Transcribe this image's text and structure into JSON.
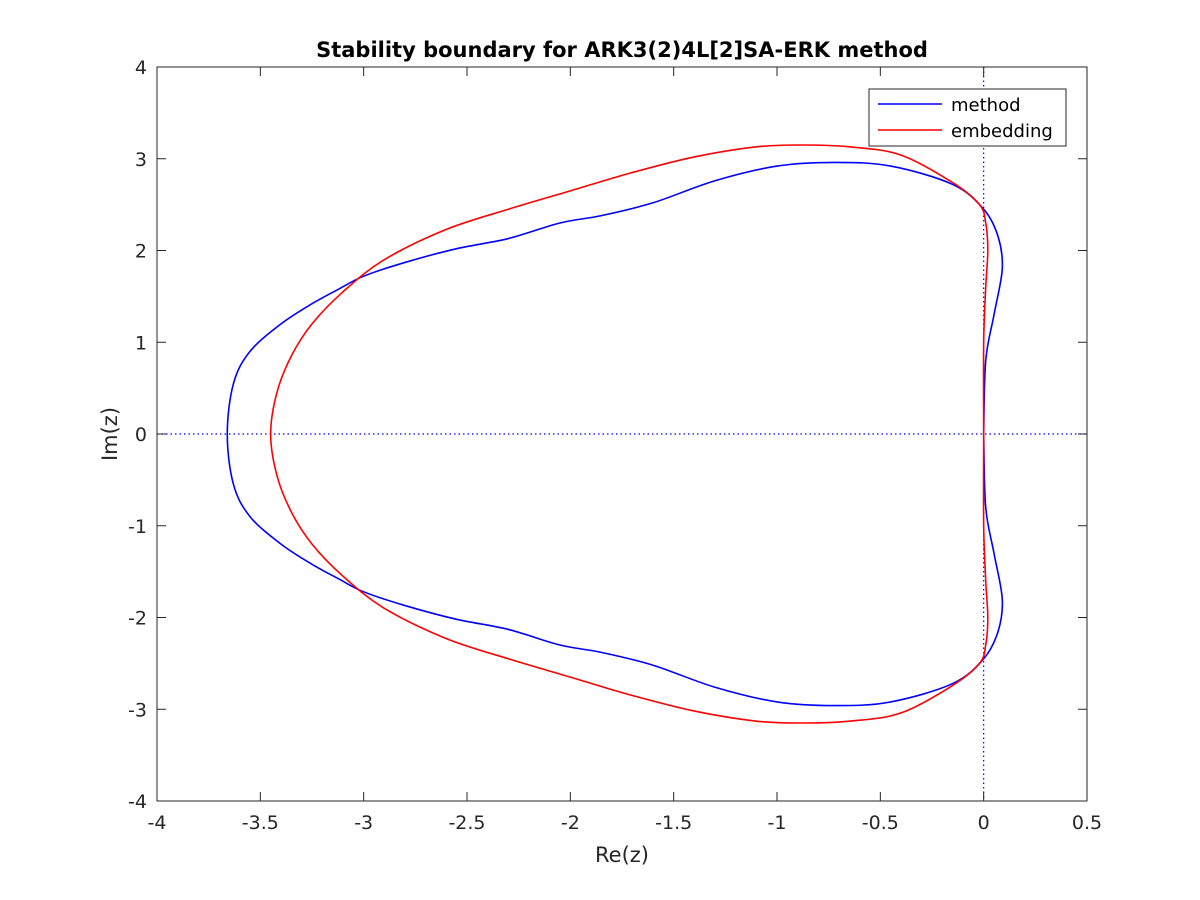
{
  "chart_data": {
    "type": "line",
    "title": "Stability boundary for ARK3(2)4L[2]SA-ERK method",
    "xlabel": "Re(z)",
    "ylabel": "Im(z)",
    "xlim": [
      -4,
      0.5
    ],
    "ylim": [
      -4,
      4
    ],
    "xticks": [
      -4,
      -3.5,
      -3,
      -2.5,
      -2,
      -1.5,
      -1,
      -0.5,
      0,
      0.5
    ],
    "xtick_labels": [
      "-4",
      "-3.5",
      "-3",
      "-2.5",
      "-2",
      "-1.5",
      "-1",
      "-0.5",
      "0",
      "0.5"
    ],
    "yticks": [
      -4,
      -3,
      -2,
      -1,
      0,
      1,
      2,
      3,
      4
    ],
    "ytick_labels": [
      "-4",
      "-3",
      "-2",
      "-1",
      "0",
      "1",
      "2",
      "3",
      "4"
    ],
    "grid": false,
    "legend_position": "top-right",
    "reference_lines": [
      {
        "axis": "y",
        "value": 0,
        "style": "dotted",
        "color": "#0000ff"
      },
      {
        "axis": "x",
        "value": 0,
        "style": "dotted",
        "color": "#0000ff"
      }
    ],
    "series": [
      {
        "name": "method",
        "color": "#0000ff",
        "x": [
          0.0,
          0.01,
          0.05,
          0.09,
          0.07,
          0.0,
          -0.15,
          -0.45,
          -0.72,
          -1.0,
          -1.3,
          -1.6,
          -1.85,
          -2.05,
          -2.3,
          -2.55,
          -2.8,
          -3.0,
          -3.12,
          -3.25,
          -3.4,
          -3.55,
          -3.63,
          -3.66,
          -3.63,
          -3.55,
          -3.4,
          -3.25,
          -3.12,
          -3.0,
          -2.8,
          -2.55,
          -2.3,
          -2.05,
          -1.85,
          -1.6,
          -1.3,
          -1.0,
          -0.72,
          -0.45,
          -0.15,
          0.0,
          0.07,
          0.09,
          0.05,
          0.01,
          0.0
        ],
        "y": [
          0.0,
          0.8,
          1.3,
          1.8,
          2.15,
          2.45,
          2.72,
          2.92,
          2.96,
          2.92,
          2.76,
          2.52,
          2.38,
          2.3,
          2.13,
          2.02,
          1.87,
          1.72,
          1.58,
          1.42,
          1.2,
          0.9,
          0.55,
          0.0,
          -0.55,
          -0.9,
          -1.2,
          -1.42,
          -1.58,
          -1.72,
          -1.87,
          -2.02,
          -2.13,
          -2.3,
          -2.38,
          -2.52,
          -2.76,
          -2.92,
          -2.96,
          -2.92,
          -2.72,
          -2.45,
          -2.15,
          -1.8,
          -1.3,
          -0.8,
          0.0
        ]
      },
      {
        "name": "embedding",
        "color": "#ff0000",
        "x": [
          0.0,
          0.0,
          0.01,
          0.02,
          0.01,
          -0.02,
          -0.15,
          -0.4,
          -0.65,
          -0.88,
          -1.1,
          -1.4,
          -1.7,
          -2.0,
          -2.3,
          -2.6,
          -2.9,
          -3.1,
          -3.25,
          -3.35,
          -3.42,
          -3.45,
          -3.42,
          -3.35,
          -3.25,
          -3.1,
          -2.9,
          -2.6,
          -2.3,
          -2.0,
          -1.7,
          -1.4,
          -1.1,
          -0.88,
          -0.65,
          -0.4,
          -0.15,
          -0.02,
          0.01,
          0.02,
          0.01,
          0.0,
          0.0
        ],
        "y": [
          0.0,
          1.0,
          1.6,
          2.0,
          2.3,
          2.5,
          2.74,
          3.04,
          3.13,
          3.15,
          3.13,
          3.02,
          2.85,
          2.65,
          2.45,
          2.23,
          1.9,
          1.55,
          1.2,
          0.85,
          0.45,
          0.0,
          -0.45,
          -0.85,
          -1.2,
          -1.55,
          -1.9,
          -2.23,
          -2.45,
          -2.65,
          -2.85,
          -3.02,
          -3.13,
          -3.15,
          -3.13,
          -3.04,
          -2.74,
          -2.5,
          -2.3,
          -2.0,
          -1.6,
          -1.0,
          0.0
        ]
      }
    ]
  }
}
